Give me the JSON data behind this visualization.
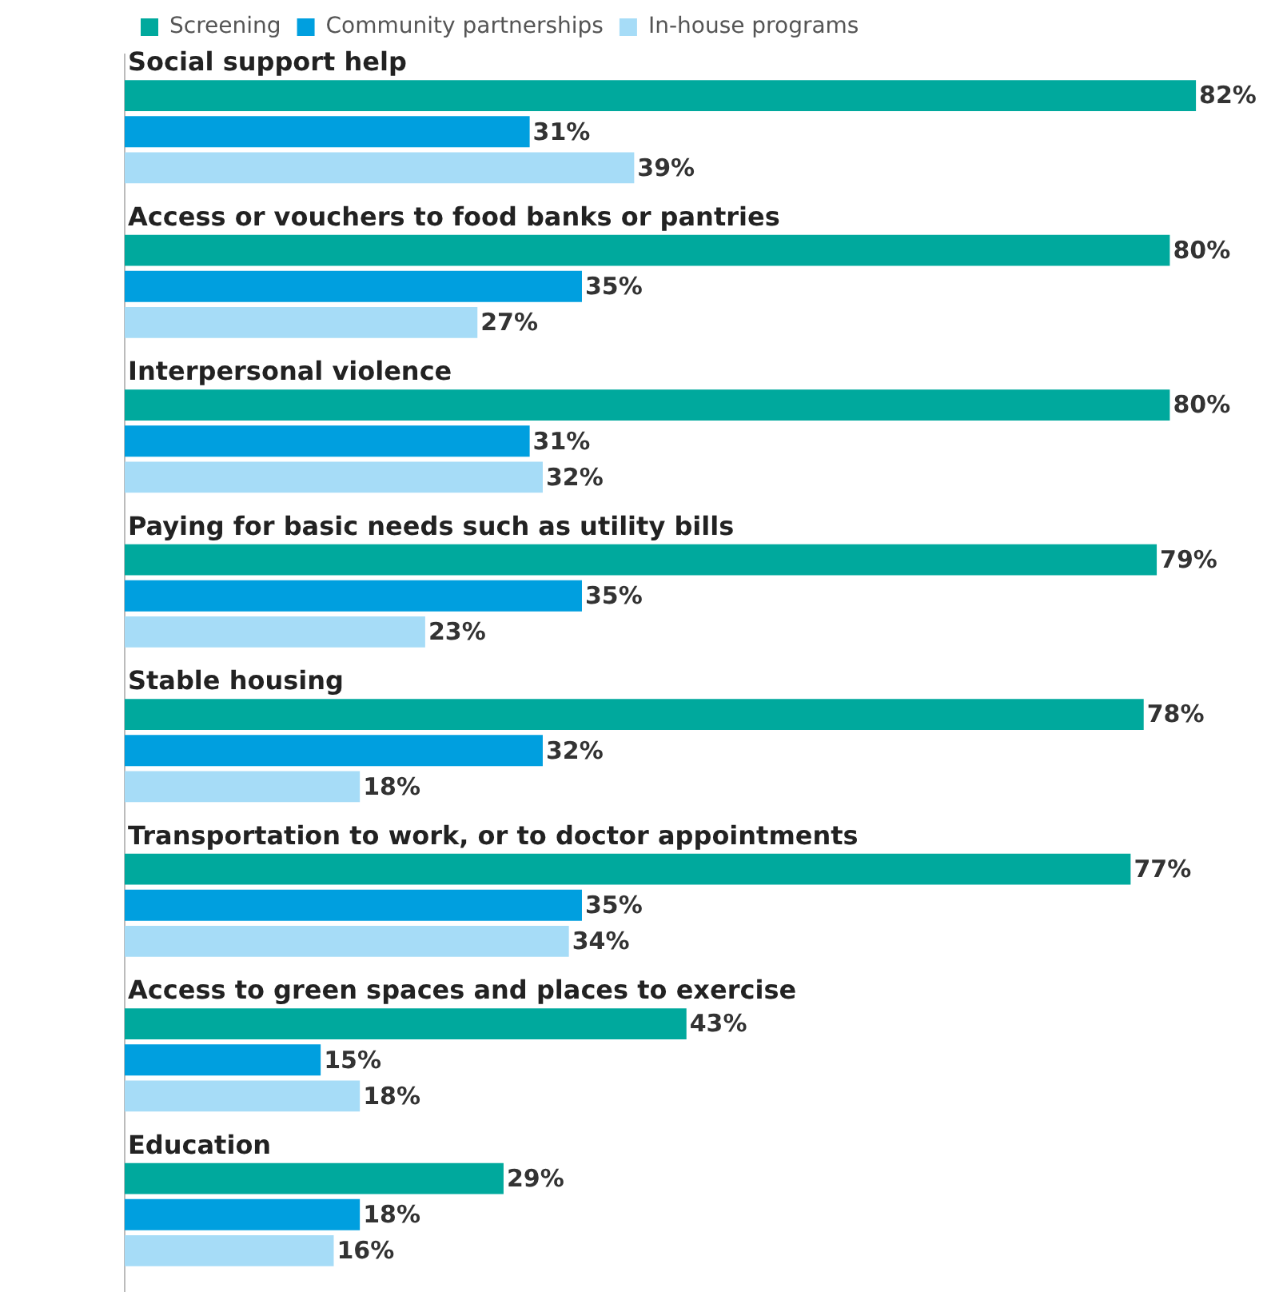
{
  "chart_data": {
    "type": "bar",
    "orientation": "horizontal",
    "legend": "top left",
    "categories": [
      "Social support help",
      "Access or vouchers to food banks or pantries",
      "Interpersonal violence",
      "Paying for basic needs such as utility bills",
      "Stable housing",
      "Transportation to work, or to doctor appointments",
      "Access to green spaces and places to exercise",
      "Education"
    ],
    "series": [
      {
        "name": "Screening",
        "color": "#00a99d",
        "values": [
          82,
          80,
          80,
          79,
          78,
          77,
          43,
          29
        ],
        "value_labels": [
          "82%",
          "80%",
          "80%",
          "79%",
          "78%",
          "77%",
          "43%",
          "29%"
        ]
      },
      {
        "name": "Community partnerships",
        "color": "#009fdf",
        "values": [
          31,
          35,
          31,
          35,
          32,
          35,
          15,
          18
        ],
        "value_labels": [
          "31%",
          "35%",
          "31%",
          "35%",
          "32%",
          "35%",
          "15%",
          "18%"
        ]
      },
      {
        "name": "In-house programs",
        "color": "#a6dcf7",
        "values": [
          39,
          27,
          32,
          23,
          18,
          34,
          18,
          16
        ],
        "value_labels": [
          "39%",
          "27%",
          "32%",
          "23%",
          "18%",
          "34%",
          "18%",
          "16%"
        ]
      }
    ]
  }
}
